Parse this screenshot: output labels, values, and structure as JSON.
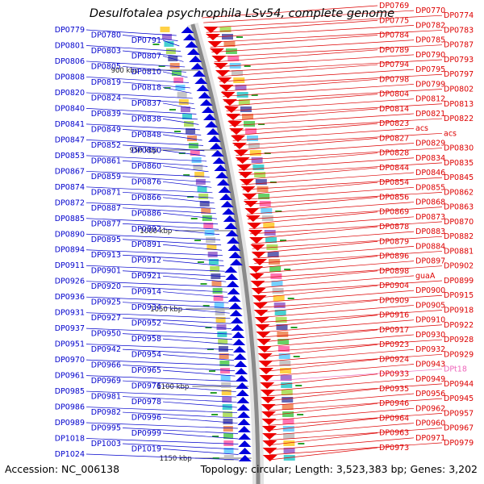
{
  "title": "Desulfotalea psychrophila LSv54, complete genome",
  "footer": {
    "accession": "Accession: NC_006138",
    "summary": "Topology: circular; Length: 3,523,383 bp; Genes: 3,202"
  },
  "colors": {
    "left_labels": "#0000cc",
    "right_labels": "#dd0000",
    "trna_label": "#ee66bb",
    "backbone": "#8a8a8a"
  },
  "scale_ticks": [
    "900 kbp",
    "950 kbp",
    "1000 kbp",
    "1050 kbp",
    "1100 kbp",
    "1150 kbp"
  ],
  "left_labels": [
    "DP0779",
    "DP0780",
    "DP0791",
    "DP0801",
    "DP0803",
    "DP0807",
    "DP0806",
    "DP0805",
    "DP0810",
    "DP0808",
    "DP0819",
    "DP0818",
    "DP0820",
    "DP0824",
    "DP0837",
    "DP0840",
    "DP0839",
    "DP0838",
    "DP0841",
    "DP0849",
    "DP0848",
    "DP0847",
    "DP0852",
    "DP0850",
    "DP0853",
    "DP0861",
    "DP0860",
    "DP0867",
    "DP0859",
    "DP0876",
    "DP0874",
    "DP0871",
    "DP0866",
    "DP0872",
    "DP0887",
    "DP0886",
    "DP0885",
    "DP0877",
    "DP0892",
    "DP0890",
    "DP0895",
    "DP0891",
    "DP0894",
    "DP0913",
    "DP0912",
    "DP0911",
    "DP0901",
    "DP0921",
    "DP0926",
    "DP0920",
    "DP0914",
    "DP0936",
    "DP0925",
    "DP0934",
    "DP0931",
    "DP0927",
    "DP0952",
    "DP0937",
    "DP0950",
    "DP0958",
    "DP0951",
    "DP0942",
    "DP0954",
    "DP0970",
    "DP0966",
    "DP0965",
    "DP0961",
    "DP0969",
    "DP0976",
    "DP0985",
    "DP0981",
    "DP0978",
    "DP0986",
    "DP0982",
    "DP0996",
    "DP0989",
    "DP0995",
    "DP0999",
    "DP1018",
    "DP1003",
    "DP1019",
    "DP1024"
  ],
  "right_labels": [
    "DP0769",
    "DP0770",
    "DP0774",
    "DP0775",
    "DP0782",
    "DP0783",
    "DP0784",
    "DP0785",
    "DP0787",
    "DP0789",
    "DP0790",
    "DP0793",
    "DP0794",
    "DP0795",
    "DP0797",
    "DP0798",
    "DP0799",
    "DP0802",
    "DP0804",
    "DP0812",
    "DP0813",
    "DP0814",
    "DP0821",
    "DP0822",
    "DP0823",
    "acs",
    "acs",
    "DP0827",
    "DP0829",
    "DP0830",
    "DP0828",
    "DP0834",
    "DP0835",
    "DP0844",
    "DP0846",
    "DP0845",
    "DP0854",
    "DP0855",
    "DP0862",
    "DP0856",
    "DP0868",
    "DP0863",
    "DP0869",
    "DP0873",
    "DP0870",
    "DP0878",
    "DP0883",
    "DP0882",
    "DP0879",
    "DP0884",
    "DP0881",
    "DP0896",
    "DP0897",
    "DP0902",
    "DP0898",
    "guaA",
    "DP0899",
    "DP0904",
    "DP0900",
    "DP0915",
    "DP0909",
    "DP0905",
    "DP0918",
    "DP0916",
    "DP0910",
    "DP0922",
    "DP0917",
    "DP0930",
    "DP0928",
    "DP0923",
    "DP0932",
    "DP0929",
    "DP0924",
    "DP0943",
    "DPt18",
    "DP0933",
    "DP0949",
    "DP0944",
    "DP0935",
    "DP0956",
    "DP0945",
    "DP0946",
    "DP0962",
    "DP0957",
    "DP0964",
    "DP0960",
    "DP0967",
    "DP0963",
    "DP0971",
    "DP0979",
    "DP0973"
  ]
}
